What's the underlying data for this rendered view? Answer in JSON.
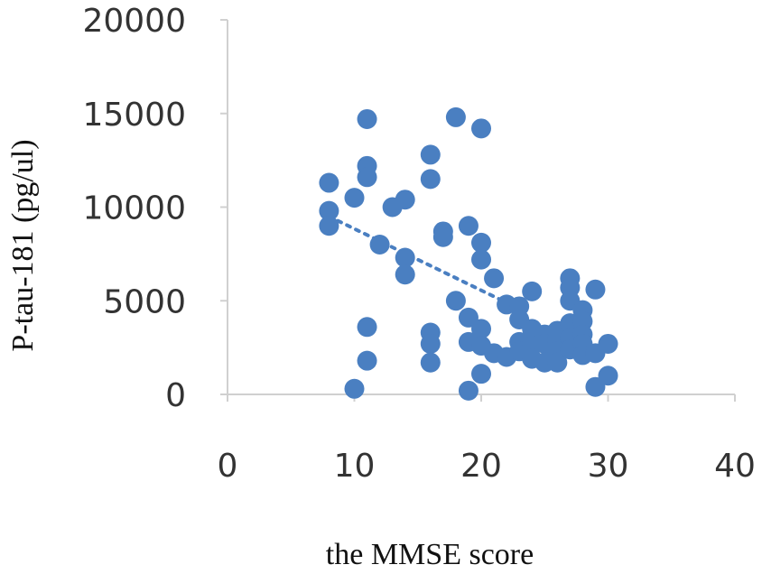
{
  "chart_data": {
    "type": "scatter",
    "xlabel": "the MMSE score",
    "ylabel": "P-tau-181  (pg/ul)",
    "xlim": [
      0,
      40
    ],
    "ylim": [
      0,
      20000
    ],
    "xticks": [
      0,
      10,
      20,
      30,
      40
    ],
    "yticks": [
      0,
      5000,
      10000,
      15000,
      20000
    ],
    "grid": false,
    "point_color": "#4a7fc1",
    "trendline": {
      "style": "dotted",
      "x": [
        8,
        22
      ],
      "y": [
        9500,
        4900
      ]
    },
    "points": [
      {
        "x": 8,
        "y": 11300
      },
      {
        "x": 8,
        "y": 9800
      },
      {
        "x": 8,
        "y": 9000
      },
      {
        "x": 10,
        "y": 10500
      },
      {
        "x": 10,
        "y": 300
      },
      {
        "x": 11,
        "y": 14700
      },
      {
        "x": 11,
        "y": 12200
      },
      {
        "x": 11,
        "y": 11600
      },
      {
        "x": 11,
        "y": 3600
      },
      {
        "x": 11,
        "y": 1800
      },
      {
        "x": 12,
        "y": 8000
      },
      {
        "x": 13,
        "y": 10000
      },
      {
        "x": 14,
        "y": 10400
      },
      {
        "x": 14,
        "y": 7300
      },
      {
        "x": 14,
        "y": 6400
      },
      {
        "x": 16,
        "y": 12800
      },
      {
        "x": 16,
        "y": 11500
      },
      {
        "x": 16,
        "y": 3300
      },
      {
        "x": 16,
        "y": 2700
      },
      {
        "x": 16,
        "y": 1700
      },
      {
        "x": 17,
        "y": 8700
      },
      {
        "x": 17,
        "y": 8400
      },
      {
        "x": 18,
        "y": 14800
      },
      {
        "x": 18,
        "y": 5000
      },
      {
        "x": 19,
        "y": 9000
      },
      {
        "x": 19,
        "y": 4100
      },
      {
        "x": 19,
        "y": 2800
      },
      {
        "x": 19,
        "y": 200
      },
      {
        "x": 20,
        "y": 14200
      },
      {
        "x": 20,
        "y": 8100
      },
      {
        "x": 20,
        "y": 7200
      },
      {
        "x": 20,
        "y": 3500
      },
      {
        "x": 20,
        "y": 2600
      },
      {
        "x": 20,
        "y": 1100
      },
      {
        "x": 21,
        "y": 6200
      },
      {
        "x": 21,
        "y": 2200
      },
      {
        "x": 22,
        "y": 4800
      },
      {
        "x": 22,
        "y": 2000
      },
      {
        "x": 23,
        "y": 4700
      },
      {
        "x": 23,
        "y": 4000
      },
      {
        "x": 23,
        "y": 2800
      },
      {
        "x": 23,
        "y": 2300
      },
      {
        "x": 24,
        "y": 5500
      },
      {
        "x": 24,
        "y": 3500
      },
      {
        "x": 24,
        "y": 2600
      },
      {
        "x": 24,
        "y": 1900
      },
      {
        "x": 25,
        "y": 3200
      },
      {
        "x": 25,
        "y": 2700
      },
      {
        "x": 25,
        "y": 1700
      },
      {
        "x": 26,
        "y": 3400
      },
      {
        "x": 26,
        "y": 2900
      },
      {
        "x": 26,
        "y": 2300
      },
      {
        "x": 26,
        "y": 1700
      },
      {
        "x": 27,
        "y": 6200
      },
      {
        "x": 27,
        "y": 5700
      },
      {
        "x": 27,
        "y": 5000
      },
      {
        "x": 27,
        "y": 3800
      },
      {
        "x": 27,
        "y": 3000
      },
      {
        "x": 27,
        "y": 2400
      },
      {
        "x": 28,
        "y": 4500
      },
      {
        "x": 28,
        "y": 3900
      },
      {
        "x": 28,
        "y": 3200
      },
      {
        "x": 28,
        "y": 2700
      },
      {
        "x": 28,
        "y": 2100
      },
      {
        "x": 29,
        "y": 5600
      },
      {
        "x": 29,
        "y": 2200
      },
      {
        "x": 29,
        "y": 400
      },
      {
        "x": 30,
        "y": 2700
      },
      {
        "x": 30,
        "y": 1000
      }
    ]
  }
}
